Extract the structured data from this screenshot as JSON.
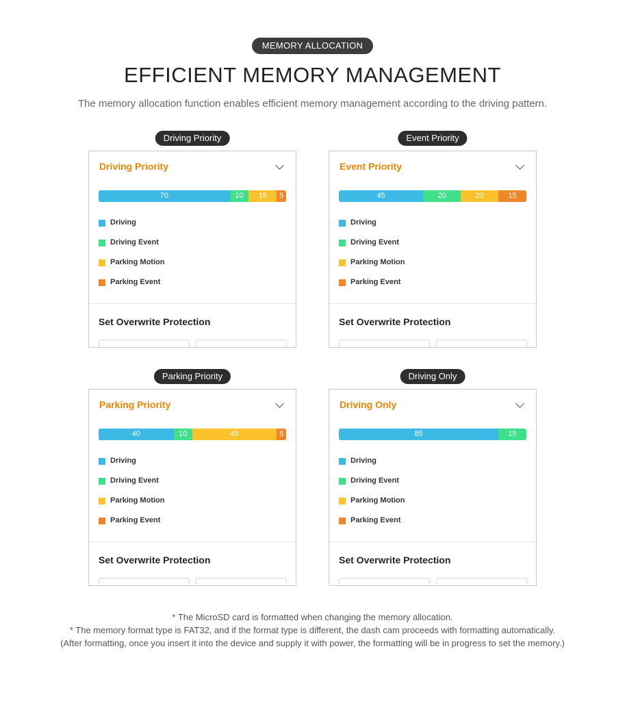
{
  "header": {
    "pill": "MEMORY ALLOCATION",
    "title": "EFFICIENT MEMORY MANAGEMENT",
    "subtitle": "The memory allocation function enables efficient memory management according to the driving pattern."
  },
  "colors": {
    "driving": "#3db9e6",
    "driving_event": "#3ee08a",
    "parking_motion": "#fcc22e",
    "parking_event": "#f0862a",
    "accent": "#f08300"
  },
  "legend": {
    "driving": "Driving",
    "driving_event": "Driving Event",
    "parking_motion": "Parking Motion",
    "parking_event": "Parking Event"
  },
  "cards": [
    {
      "tag": "Driving Priority",
      "title": "Driving Priority",
      "protect_label": "Set Overwrite Protection",
      "allocation": [
        {
          "key": "driving",
          "value": 70,
          "label": "70"
        },
        {
          "key": "driving_event",
          "value": 10,
          "label": "10"
        },
        {
          "key": "parking_motion",
          "value": 15,
          "label": "15"
        },
        {
          "key": "parking_event",
          "value": 5,
          "label": "5"
        }
      ]
    },
    {
      "tag": "Event Priority",
      "title": "Event Priority",
      "protect_label": "Set Overwrite Protection",
      "allocation": [
        {
          "key": "driving",
          "value": 45,
          "label": "45"
        },
        {
          "key": "driving_event",
          "value": 20,
          "label": "20"
        },
        {
          "key": "parking_motion",
          "value": 20,
          "label": "20"
        },
        {
          "key": "parking_event",
          "value": 15,
          "label": "15"
        }
      ]
    },
    {
      "tag": "Parking Priority",
      "title": "Parking Priority",
      "protect_label": "Set Overwrite Protection",
      "allocation": [
        {
          "key": "driving",
          "value": 40,
          "label": "40"
        },
        {
          "key": "driving_event",
          "value": 10,
          "label": "10"
        },
        {
          "key": "parking_motion",
          "value": 45,
          "label": "45"
        },
        {
          "key": "parking_event",
          "value": 5,
          "label": "5"
        }
      ]
    },
    {
      "tag": "Driving Only",
      "title": "Driving Only",
      "protect_label": "Set Overwrite Protection",
      "allocation": [
        {
          "key": "driving",
          "value": 85,
          "label": "85"
        },
        {
          "key": "driving_event",
          "value": 15,
          "label": "15"
        }
      ]
    }
  ],
  "footnotes": [
    "* The MicroSD card is formatted when changing the memory allocation.",
    "* The memory format type is FAT32, and if the format type is different, the dash cam proceeds with formatting automatically.",
    "(After formatting, once you insert it into the device and supply it with power, the formatting will be in progress to set the memory.)"
  ]
}
